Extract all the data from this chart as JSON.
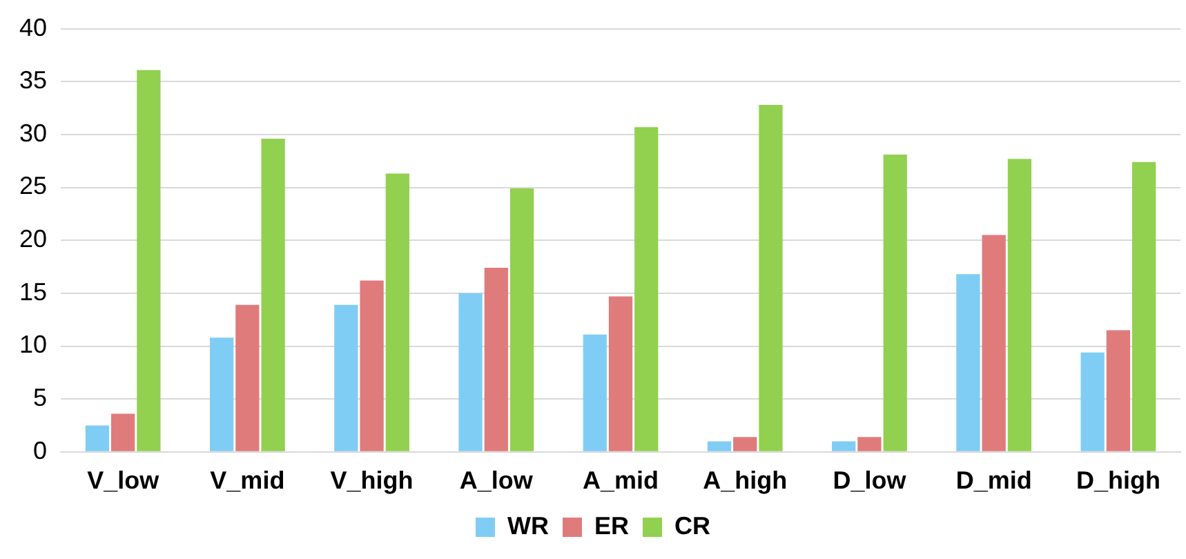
{
  "chart_data": {
    "type": "bar",
    "categories": [
      "V_low",
      "V_mid",
      "V_high",
      "A_low",
      "A_mid",
      "A_high",
      "D_low",
      "D_mid",
      "D_high"
    ],
    "series": [
      {
        "name": "WR",
        "color": "#7fcdf4",
        "values": [
          2.5,
          10.8,
          13.9,
          15.0,
          11.1,
          1.0,
          1.0,
          16.8,
          9.4
        ]
      },
      {
        "name": "ER",
        "color": "#e07b7b",
        "values": [
          3.6,
          13.9,
          16.2,
          17.4,
          14.7,
          1.4,
          1.4,
          20.5,
          11.5
        ]
      },
      {
        "name": "CR",
        "color": "#92d050",
        "values": [
          36.1,
          29.6,
          26.3,
          24.9,
          30.7,
          32.8,
          28.1,
          27.7,
          27.4
        ]
      }
    ],
    "ylim": [
      0,
      40
    ],
    "yticks": [
      0,
      5,
      10,
      15,
      20,
      25,
      30,
      35,
      40
    ],
    "grid": "y",
    "legend": "bottom"
  }
}
